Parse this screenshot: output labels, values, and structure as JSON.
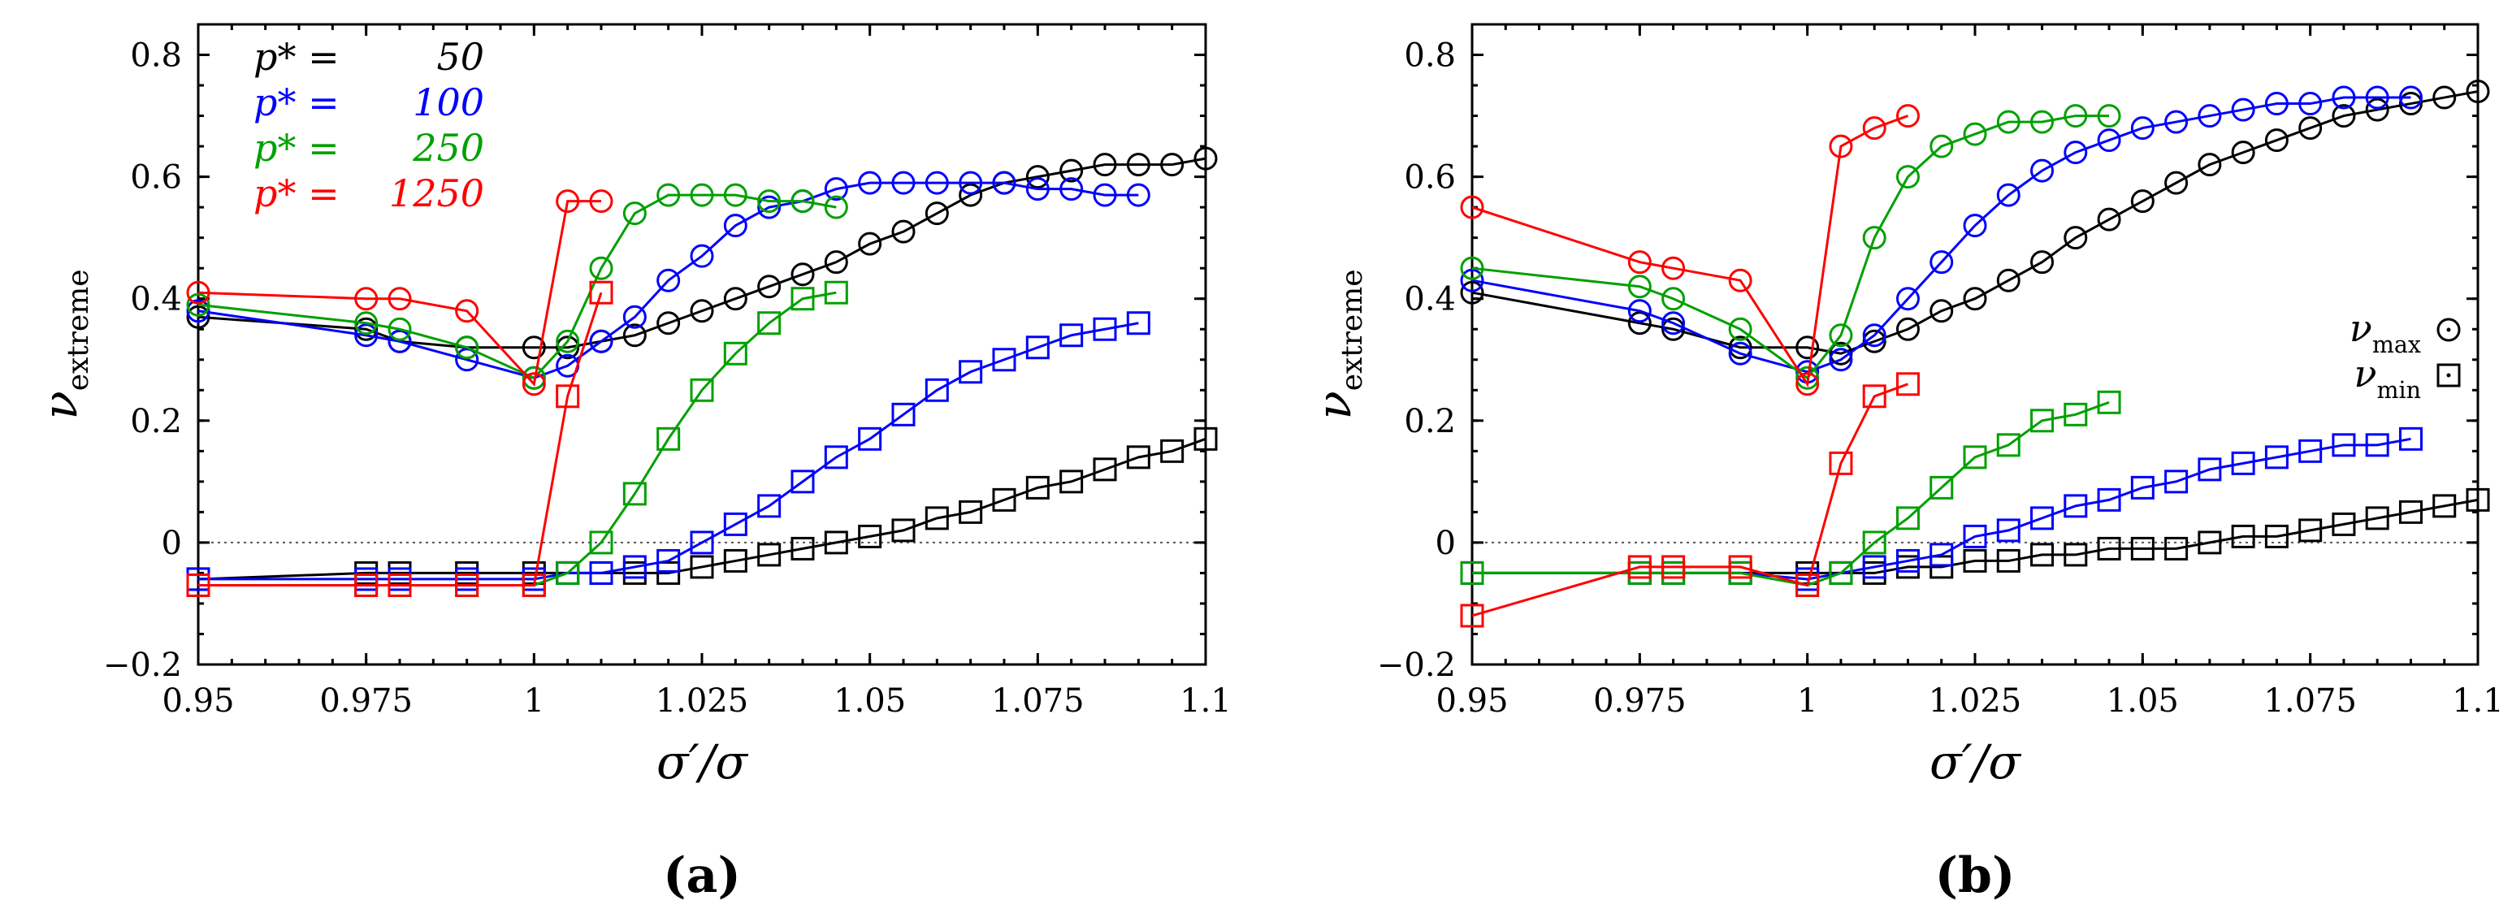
{
  "colors": {
    "p50": "#000000",
    "p100": "#0000ff",
    "p250": "#00a000",
    "p1250": "#ff0000"
  },
  "chart_data": [
    {
      "type": "line",
      "panel_label": "(a)",
      "xlabel": "σ′/σ",
      "ylabel": "ν_extreme",
      "xlim": [
        0.95,
        1.1
      ],
      "ylim": [
        -0.2,
        0.85
      ],
      "xticks": [
        "0.95",
        "0.975",
        "1",
        "1.025",
        "1.05",
        "1.075",
        "1.1"
      ],
      "yticks": [
        "−0.2",
        "0",
        "0.2",
        "0.4",
        "0.6",
        "0.8"
      ],
      "legend": [
        {
          "label": "p* =",
          "value": "50",
          "color": "#000000"
        },
        {
          "label": "p* =",
          "value": "100",
          "color": "#0000ff"
        },
        {
          "label": "p* =",
          "value": "250",
          "color": "#00a000"
        },
        {
          "label": "p* =",
          "value": "1250",
          "color": "#ff0000"
        }
      ],
      "series": [
        {
          "name": "p*=50 ν_max",
          "color": "#000000",
          "marker": "circle",
          "x": [
            0.95,
            0.975,
            0.98,
            0.99,
            1.0,
            1.005,
            1.01,
            1.015,
            1.02,
            1.025,
            1.03,
            1.035,
            1.04,
            1.045,
            1.05,
            1.055,
            1.06,
            1.065,
            1.07,
            1.075,
            1.08,
            1.085,
            1.09,
            1.095,
            1.1
          ],
          "y": [
            0.37,
            0.35,
            0.33,
            0.32,
            0.32,
            0.32,
            0.33,
            0.34,
            0.36,
            0.38,
            0.4,
            0.42,
            0.44,
            0.46,
            0.49,
            0.51,
            0.54,
            0.57,
            0.59,
            0.6,
            0.61,
            0.62,
            0.62,
            0.62,
            0.63
          ]
        },
        {
          "name": "p*=100 ν_max",
          "color": "#0000ff",
          "marker": "circle",
          "x": [
            0.95,
            0.975,
            0.98,
            0.99,
            1.0,
            1.005,
            1.01,
            1.015,
            1.02,
            1.025,
            1.03,
            1.035,
            1.04,
            1.045,
            1.05,
            1.055,
            1.06,
            1.065,
            1.07,
            1.075,
            1.08,
            1.085,
            1.09
          ],
          "y": [
            0.38,
            0.34,
            0.33,
            0.3,
            0.27,
            0.29,
            0.33,
            0.37,
            0.43,
            0.47,
            0.52,
            0.55,
            0.56,
            0.58,
            0.59,
            0.59,
            0.59,
            0.59,
            0.59,
            0.58,
            0.58,
            0.57,
            0.57
          ]
        },
        {
          "name": "p*=250 ν_max",
          "color": "#00a000",
          "marker": "circle",
          "x": [
            0.95,
            0.975,
            0.98,
            0.99,
            1.0,
            1.005,
            1.01,
            1.015,
            1.02,
            1.025,
            1.03,
            1.035,
            1.04,
            1.045
          ],
          "y": [
            0.39,
            0.36,
            0.35,
            0.32,
            0.27,
            0.33,
            0.45,
            0.54,
            0.57,
            0.57,
            0.57,
            0.56,
            0.56,
            0.55
          ]
        },
        {
          "name": "p*=1250 ν_max",
          "color": "#ff0000",
          "marker": "circle",
          "x": [
            0.95,
            0.975,
            0.98,
            0.99,
            1.0,
            1.005,
            1.01
          ],
          "y": [
            0.41,
            0.4,
            0.4,
            0.38,
            0.26,
            0.56,
            0.56
          ]
        },
        {
          "name": "p*=50 ν_min",
          "color": "#000000",
          "marker": "square",
          "x": [
            0.95,
            0.975,
            0.98,
            0.99,
            1.0,
            1.005,
            1.01,
            1.015,
            1.02,
            1.025,
            1.03,
            1.035,
            1.04,
            1.045,
            1.05,
            1.055,
            1.06,
            1.065,
            1.07,
            1.075,
            1.08,
            1.085,
            1.09,
            1.095,
            1.1
          ],
          "y": [
            -0.06,
            -0.05,
            -0.05,
            -0.05,
            -0.05,
            -0.05,
            -0.05,
            -0.05,
            -0.05,
            -0.04,
            -0.03,
            -0.02,
            -0.01,
            0.0,
            0.01,
            0.02,
            0.04,
            0.05,
            0.07,
            0.09,
            0.1,
            0.12,
            0.14,
            0.15,
            0.17
          ]
        },
        {
          "name": "p*=100 ν_min",
          "color": "#0000ff",
          "marker": "square",
          "x": [
            0.95,
            0.975,
            0.98,
            0.99,
            1.0,
            1.005,
            1.01,
            1.015,
            1.02,
            1.025,
            1.03,
            1.035,
            1.04,
            1.045,
            1.05,
            1.055,
            1.06,
            1.065,
            1.07,
            1.075,
            1.08,
            1.085,
            1.09
          ],
          "y": [
            -0.06,
            -0.06,
            -0.06,
            -0.06,
            -0.06,
            -0.05,
            -0.05,
            -0.04,
            -0.03,
            0.0,
            0.03,
            0.06,
            0.1,
            0.14,
            0.17,
            0.21,
            0.25,
            0.28,
            0.3,
            0.32,
            0.34,
            0.35,
            0.36
          ]
        },
        {
          "name": "p*=250 ν_min",
          "color": "#00a000",
          "marker": "square",
          "x": [
            0.95,
            0.975,
            0.98,
            0.99,
            1.0,
            1.005,
            1.01,
            1.015,
            1.02,
            1.025,
            1.03,
            1.035,
            1.04,
            1.045
          ],
          "y": [
            -0.07,
            -0.07,
            -0.07,
            -0.07,
            -0.07,
            -0.05,
            0.0,
            0.08,
            0.17,
            0.25,
            0.31,
            0.36,
            0.4,
            0.41
          ]
        },
        {
          "name": "p*=1250 ν_min",
          "color": "#ff0000",
          "marker": "square",
          "x": [
            0.95,
            0.975,
            0.98,
            0.99,
            1.0,
            1.005,
            1.01
          ],
          "y": [
            -0.07,
            -0.07,
            -0.07,
            -0.07,
            -0.07,
            0.24,
            0.41
          ]
        }
      ]
    },
    {
      "type": "line",
      "panel_label": "(b)",
      "xlabel": "σ′/σ",
      "ylabel": "ν_extreme",
      "xlim": [
        0.95,
        1.1
      ],
      "ylim": [
        -0.2,
        0.85
      ],
      "xticks": [
        "0.95",
        "0.975",
        "1",
        "1.025",
        "1.05",
        "1.075",
        "1.1"
      ],
      "yticks": [
        "−0.2",
        "0",
        "0.2",
        "0.4",
        "0.6",
        "0.8"
      ],
      "shape_legend": [
        {
          "label": "ν_max",
          "marker": "circle"
        },
        {
          "label": "ν_min",
          "marker": "square"
        }
      ],
      "series": [
        {
          "name": "p*=50 ν_max",
          "color": "#000000",
          "marker": "circle",
          "x": [
            0.95,
            0.975,
            0.98,
            0.99,
            1.0,
            1.005,
            1.01,
            1.015,
            1.02,
            1.025,
            1.03,
            1.035,
            1.04,
            1.045,
            1.05,
            1.055,
            1.06,
            1.065,
            1.07,
            1.075,
            1.08,
            1.085,
            1.09,
            1.095,
            1.1
          ],
          "y": [
            0.41,
            0.36,
            0.35,
            0.32,
            0.32,
            0.31,
            0.33,
            0.35,
            0.38,
            0.4,
            0.43,
            0.46,
            0.5,
            0.53,
            0.56,
            0.59,
            0.62,
            0.64,
            0.66,
            0.68,
            0.7,
            0.71,
            0.72,
            0.73,
            0.74
          ]
        },
        {
          "name": "p*=100 ν_max",
          "color": "#0000ff",
          "marker": "circle",
          "x": [
            0.95,
            0.975,
            0.98,
            0.99,
            1.0,
            1.005,
            1.01,
            1.015,
            1.02,
            1.025,
            1.03,
            1.035,
            1.04,
            1.045,
            1.05,
            1.055,
            1.06,
            1.065,
            1.07,
            1.075,
            1.08,
            1.085,
            1.09
          ],
          "y": [
            0.43,
            0.38,
            0.36,
            0.31,
            0.28,
            0.3,
            0.34,
            0.4,
            0.46,
            0.52,
            0.57,
            0.61,
            0.64,
            0.66,
            0.68,
            0.69,
            0.7,
            0.71,
            0.72,
            0.72,
            0.73,
            0.73,
            0.73
          ]
        },
        {
          "name": "p*=250 ν_max",
          "color": "#00a000",
          "marker": "circle",
          "x": [
            0.95,
            0.975,
            0.98,
            0.99,
            1.0,
            1.005,
            1.01,
            1.015,
            1.02,
            1.025,
            1.03,
            1.035,
            1.04,
            1.045
          ],
          "y": [
            0.45,
            0.42,
            0.4,
            0.35,
            0.27,
            0.34,
            0.5,
            0.6,
            0.65,
            0.67,
            0.69,
            0.69,
            0.7,
            0.7
          ]
        },
        {
          "name": "p*=1250 ν_max",
          "color": "#ff0000",
          "marker": "circle",
          "x": [
            0.95,
            0.975,
            0.98,
            0.99,
            1.0,
            1.005,
            1.01,
            1.015
          ],
          "y": [
            0.55,
            0.46,
            0.45,
            0.43,
            0.26,
            0.65,
            0.68,
            0.7
          ]
        },
        {
          "name": "p*=50 ν_min",
          "color": "#000000",
          "marker": "square",
          "x": [
            0.95,
            0.975,
            0.98,
            0.99,
            1.0,
            1.005,
            1.01,
            1.015,
            1.02,
            1.025,
            1.03,
            1.035,
            1.04,
            1.045,
            1.05,
            1.055,
            1.06,
            1.065,
            1.07,
            1.075,
            1.08,
            1.085,
            1.09,
            1.095,
            1.1
          ],
          "y": [
            -0.05,
            -0.05,
            -0.05,
            -0.05,
            -0.05,
            -0.05,
            -0.05,
            -0.04,
            -0.04,
            -0.03,
            -0.03,
            -0.02,
            -0.02,
            -0.01,
            -0.01,
            -0.01,
            0.0,
            0.01,
            0.01,
            0.02,
            0.03,
            0.04,
            0.05,
            0.06,
            0.07
          ]
        },
        {
          "name": "p*=100 ν_min",
          "color": "#0000ff",
          "marker": "square",
          "x": [
            0.95,
            0.975,
            0.98,
            0.99,
            1.0,
            1.005,
            1.01,
            1.015,
            1.02,
            1.025,
            1.03,
            1.035,
            1.04,
            1.045,
            1.05,
            1.055,
            1.06,
            1.065,
            1.07,
            1.075,
            1.08,
            1.085,
            1.09
          ],
          "y": [
            -0.05,
            -0.05,
            -0.05,
            -0.05,
            -0.06,
            -0.05,
            -0.04,
            -0.03,
            -0.02,
            0.01,
            0.02,
            0.04,
            0.06,
            0.07,
            0.09,
            0.1,
            0.12,
            0.13,
            0.14,
            0.15,
            0.16,
            0.16,
            0.17
          ]
        },
        {
          "name": "p*=250 ν_min",
          "color": "#00a000",
          "marker": "square",
          "x": [
            0.95,
            0.975,
            0.98,
            0.99,
            1.0,
            1.005,
            1.01,
            1.015,
            1.02,
            1.025,
            1.03,
            1.035,
            1.04,
            1.045
          ],
          "y": [
            -0.05,
            -0.05,
            -0.05,
            -0.05,
            -0.07,
            -0.05,
            0.0,
            0.04,
            0.09,
            0.14,
            0.16,
            0.2,
            0.21,
            0.23
          ]
        },
        {
          "name": "p*=1250 ν_min",
          "color": "#ff0000",
          "marker": "square",
          "x": [
            0.95,
            0.975,
            0.98,
            0.99,
            1.0,
            1.005,
            1.01,
            1.015
          ],
          "y": [
            -0.12,
            -0.04,
            -0.04,
            -0.04,
            -0.07,
            0.13,
            0.24,
            0.26
          ]
        }
      ]
    }
  ]
}
